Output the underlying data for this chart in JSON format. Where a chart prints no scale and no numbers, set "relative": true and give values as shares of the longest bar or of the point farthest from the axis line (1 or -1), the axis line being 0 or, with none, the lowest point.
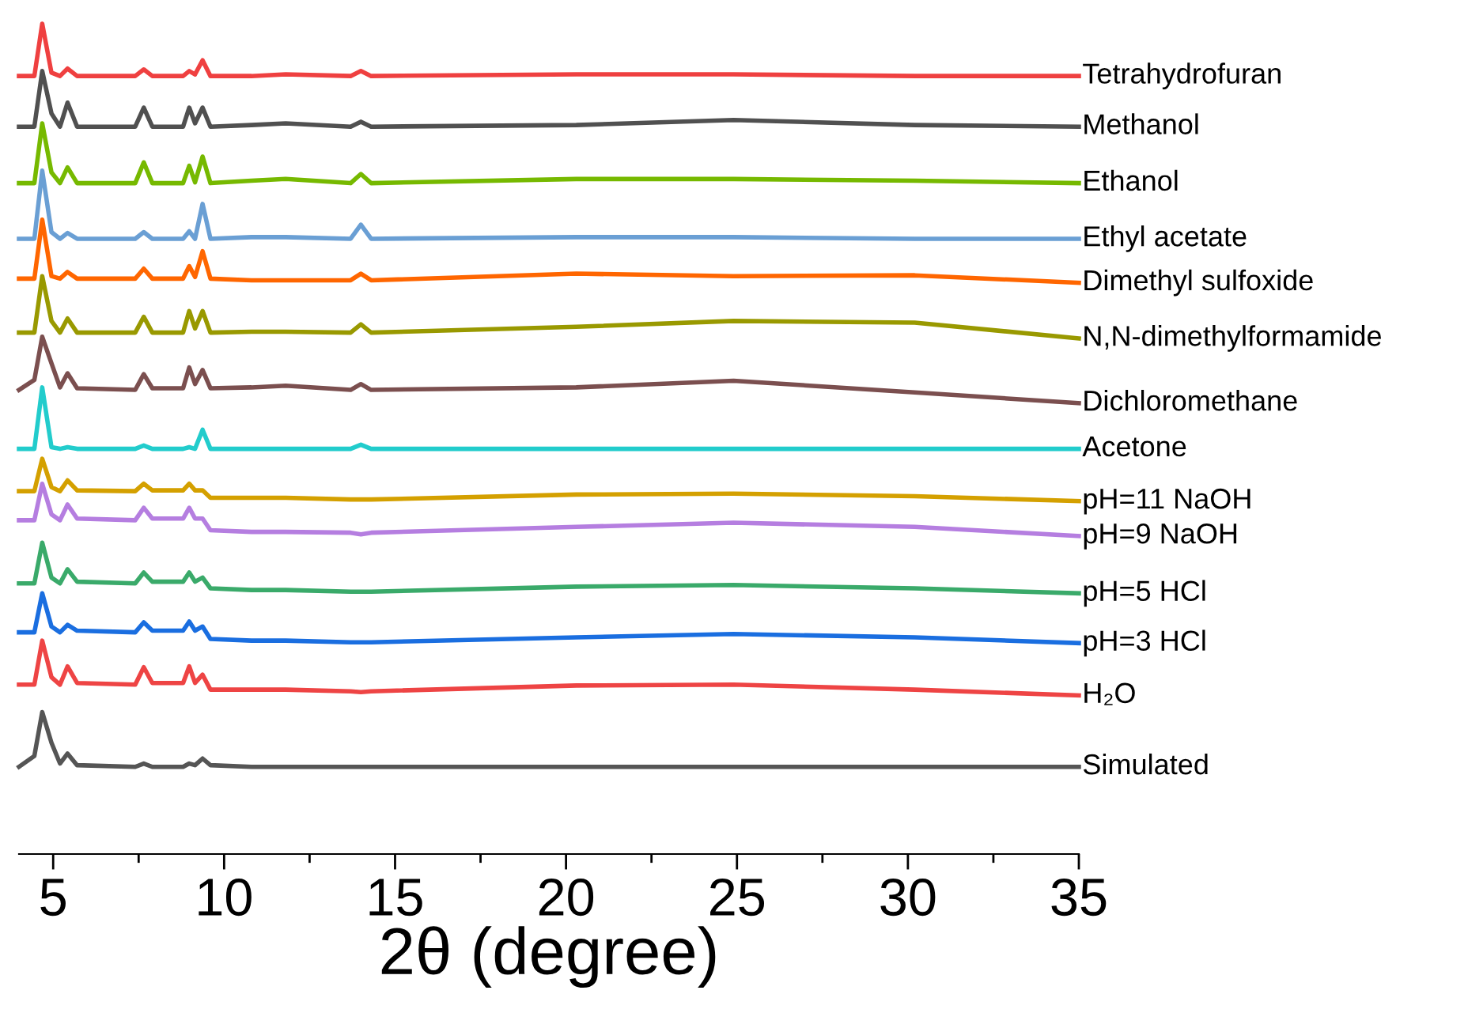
{
  "chart_data": {
    "type": "line",
    "relative": true,
    "xlabel": "2θ (degree)",
    "x": [
      4.0,
      4.45,
      4.68,
      4.95,
      5.2,
      5.42,
      5.7,
      7.4,
      7.65,
      7.9,
      8.8,
      8.98,
      9.15,
      9.37,
      9.6,
      10.8,
      11.8,
      13.7,
      14.0,
      14.3,
      20.3,
      24.9,
      30.2,
      35.0
    ],
    "xlim": [
      4,
      35
    ],
    "xticks": [
      5,
      {
        "value": 7.5,
        "label": null
      },
      10,
      {
        "value": 12.5,
        "label": null
      },
      15,
      {
        "value": 17.5,
        "label": null
      },
      20,
      {
        "value": 22.5,
        "label": null
      },
      25,
      {
        "value": 27.5,
        "label": null
      },
      30,
      {
        "value": 32.5,
        "label": null
      },
      35
    ],
    "grid": false,
    "legend": false,
    "marker": "none",
    "line_style": "solid",
    "series": [
      {
        "name": "Tetrahydrofuran",
        "color": "#ef4040",
        "values": [
          0.937,
          0.937,
          1.0,
          0.941,
          0.937,
          0.946,
          0.937,
          0.937,
          0.945,
          0.937,
          0.937,
          0.943,
          0.939,
          0.956,
          0.937,
          0.937,
          0.939,
          0.937,
          0.943,
          0.937,
          0.939,
          0.939,
          0.937,
          0.937
        ]
      },
      {
        "name": "Methanol",
        "color": "#505050",
        "values": [
          0.876,
          0.876,
          0.943,
          0.892,
          0.876,
          0.905,
          0.876,
          0.876,
          0.899,
          0.876,
          0.876,
          0.899,
          0.88,
          0.899,
          0.876,
          0.878,
          0.88,
          0.876,
          0.882,
          0.876,
          0.878,
          0.884,
          0.878,
          0.876
        ]
      },
      {
        "name": "Ethanol",
        "color": "#76b900",
        "values": [
          0.808,
          0.808,
          0.88,
          0.821,
          0.808,
          0.827,
          0.808,
          0.808,
          0.833,
          0.808,
          0.808,
          0.829,
          0.809,
          0.84,
          0.808,
          0.811,
          0.813,
          0.808,
          0.819,
          0.808,
          0.813,
          0.813,
          0.811,
          0.808
        ]
      },
      {
        "name": "Ethyl acetate",
        "color": "#6a9fd4",
        "values": [
          0.741,
          0.741,
          0.823,
          0.749,
          0.741,
          0.748,
          0.741,
          0.741,
          0.749,
          0.741,
          0.741,
          0.75,
          0.741,
          0.783,
          0.741,
          0.743,
          0.743,
          0.741,
          0.758,
          0.741,
          0.743,
          0.743,
          0.741,
          0.741
        ]
      },
      {
        "name": "Dimethyl sulfoxide",
        "color": "#ff6600",
        "values": [
          0.693,
          0.693,
          0.764,
          0.696,
          0.693,
          0.701,
          0.693,
          0.693,
          0.705,
          0.693,
          0.693,
          0.708,
          0.695,
          0.726,
          0.693,
          0.691,
          0.691,
          0.691,
          0.699,
          0.691,
          0.699,
          0.696,
          0.697,
          0.688
        ]
      },
      {
        "name": "N,N-dimethylformamide",
        "color": "#999900",
        "values": [
          0.628,
          0.628,
          0.696,
          0.642,
          0.628,
          0.645,
          0.628,
          0.628,
          0.647,
          0.628,
          0.628,
          0.654,
          0.633,
          0.654,
          0.628,
          0.629,
          0.629,
          0.628,
          0.638,
          0.628,
          0.635,
          0.642,
          0.64,
          0.621
        ]
      },
      {
        "name": "Dichloromethane",
        "color": "#7b4f4f",
        "values": [
          0.559,
          0.571,
          0.623,
          0.591,
          0.562,
          0.579,
          0.561,
          0.559,
          0.578,
          0.561,
          0.561,
          0.586,
          0.566,
          0.583,
          0.561,
          0.562,
          0.564,
          0.559,
          0.566,
          0.559,
          0.562,
          0.57,
          0.556,
          0.543
        ]
      },
      {
        "name": "Acetone",
        "color": "#22cccc",
        "values": [
          0.488,
          0.488,
          0.562,
          0.49,
          0.488,
          0.49,
          0.488,
          0.488,
          0.492,
          0.488,
          0.488,
          0.49,
          0.488,
          0.511,
          0.488,
          0.488,
          0.488,
          0.488,
          0.493,
          0.488,
          0.488,
          0.488,
          0.488,
          0.488
        ]
      },
      {
        "name": "pH=11 NaOH",
        "color": "#d4a000",
        "values": [
          0.437,
          0.437,
          0.476,
          0.442,
          0.437,
          0.45,
          0.438,
          0.437,
          0.446,
          0.438,
          0.438,
          0.446,
          0.438,
          0.438,
          0.429,
          0.429,
          0.429,
          0.427,
          0.427,
          0.427,
          0.433,
          0.434,
          0.431,
          0.425
        ]
      },
      {
        "name": "pH=9 NaOH",
        "color": "#b57ee0",
        "values": [
          0.402,
          0.402,
          0.446,
          0.409,
          0.402,
          0.421,
          0.404,
          0.402,
          0.417,
          0.404,
          0.404,
          0.417,
          0.404,
          0.404,
          0.39,
          0.388,
          0.388,
          0.387,
          0.385,
          0.387,
          0.394,
          0.399,
          0.394,
          0.383
        ]
      },
      {
        "name": "pH=5 HCl",
        "color": "#3aaa6a",
        "values": [
          0.326,
          0.326,
          0.375,
          0.333,
          0.326,
          0.343,
          0.328,
          0.326,
          0.339,
          0.328,
          0.328,
          0.339,
          0.328,
          0.333,
          0.32,
          0.318,
          0.318,
          0.316,
          0.316,
          0.316,
          0.322,
          0.324,
          0.32,
          0.314
        ]
      },
      {
        "name": "pH=3 HCl",
        "color": "#1a6ee0",
        "values": [
          0.267,
          0.267,
          0.314,
          0.274,
          0.267,
          0.276,
          0.269,
          0.267,
          0.279,
          0.269,
          0.269,
          0.28,
          0.269,
          0.274,
          0.259,
          0.257,
          0.257,
          0.255,
          0.255,
          0.255,
          0.261,
          0.265,
          0.261,
          0.254
        ]
      },
      {
        "name": "H₂O",
        "color": "#ee4444",
        "values": [
          0.204,
          0.204,
          0.257,
          0.213,
          0.204,
          0.226,
          0.206,
          0.204,
          0.225,
          0.206,
          0.206,
          0.226,
          0.206,
          0.216,
          0.198,
          0.198,
          0.198,
          0.196,
          0.195,
          0.196,
          0.203,
          0.204,
          0.198,
          0.191
        ]
      },
      {
        "name": "Simulated",
        "color": "#555555",
        "values": [
          0.105,
          0.118,
          0.171,
          0.134,
          0.109,
          0.121,
          0.107,
          0.105,
          0.109,
          0.105,
          0.105,
          0.109,
          0.107,
          0.115,
          0.107,
          0.105,
          0.105,
          0.105,
          0.105,
          0.105,
          0.105,
          0.105,
          0.105,
          0.105
        ]
      }
    ]
  }
}
